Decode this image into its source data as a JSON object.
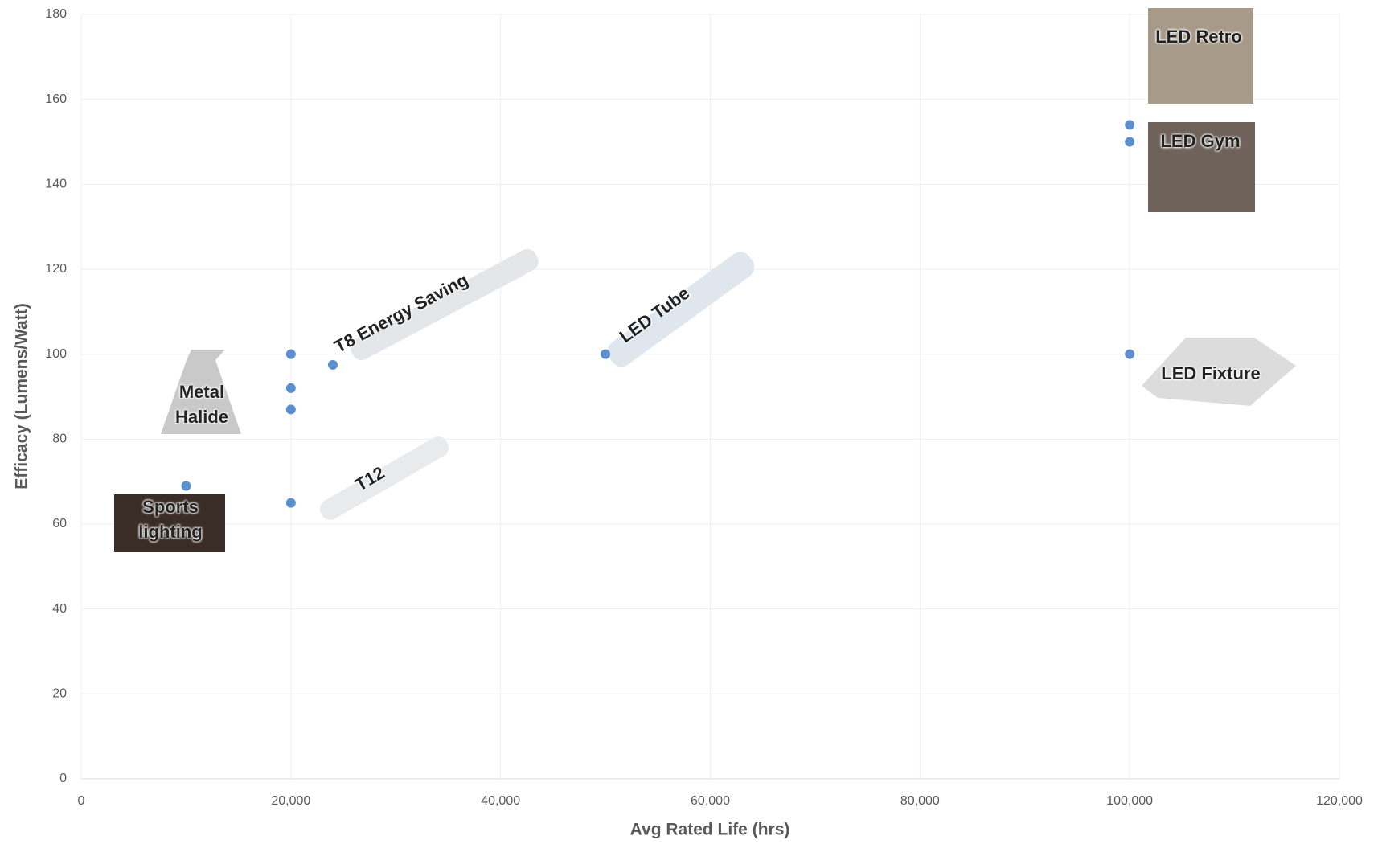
{
  "chart_data": {
    "type": "scatter",
    "x_label": "Avg Rated Life (hrs)",
    "y_label": "Efficacy (Lumens/Watt)",
    "series": [
      {
        "color": "#5b8fd0",
        "x": [
          10000,
          20000,
          20000,
          20000,
          20000,
          24000,
          50000,
          100000,
          100000,
          100000
        ],
        "values": [
          69,
          100,
          92,
          87,
          65,
          97.5,
          100,
          154,
          150,
          100
        ]
      }
    ],
    "xlim": [
      0,
      120000
    ],
    "xticks": [
      0,
      {
        "value": 20000,
        "label": "20,000"
      },
      {
        "value": 40000,
        "label": "40,000"
      },
      {
        "value": 60000,
        "label": "60,000"
      },
      {
        "value": 80000,
        "label": "80,000"
      },
      {
        "value": 100000,
        "label": "100,000"
      },
      {
        "value": 120000,
        "label": "120,000"
      }
    ],
    "ylim": [
      0,
      180
    ],
    "yticks": [
      0,
      20,
      40,
      60,
      80,
      100,
      120,
      140,
      160,
      180
    ],
    "grid": true,
    "annotations": [
      "LED Retro",
      "LED Gym",
      "T8 Energy Saving",
      "LED Tube",
      "Metal Halide",
      "T12",
      "Sports lighting",
      "LED Fixture"
    ]
  }
}
